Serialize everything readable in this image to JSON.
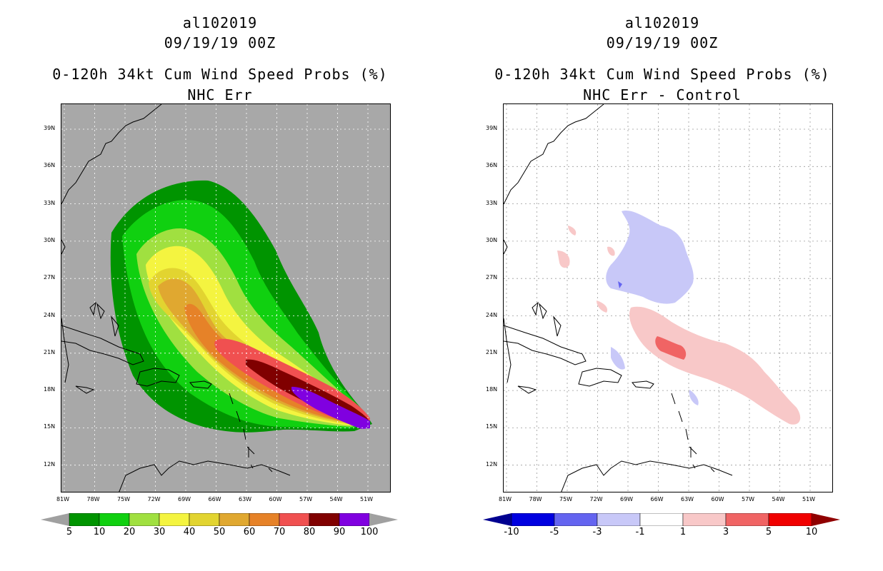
{
  "left": {
    "storm_id": "al102019",
    "datetime": "09/19/19 00Z",
    "product": "0-120h 34kt Cum Wind Speed Probs (%)",
    "subtitle": "NHC Err",
    "background": "#a8a8a8",
    "colorbar": {
      "colors": [
        "#009400",
        "#10d010",
        "#a0e040",
        "#f4f440",
        "#e2d430",
        "#e0a830",
        "#e68228",
        "#f05050",
        "#800000",
        "#8000e0"
      ],
      "labels": [
        "5",
        "10",
        "20",
        "30",
        "40",
        "50",
        "60",
        "70",
        "80",
        "90",
        "100"
      ],
      "end_color": "#a0a0a0"
    }
  },
  "right": {
    "storm_id": "al102019",
    "datetime": "09/19/19 00Z",
    "product": "0-120h 34kt Cum Wind Speed Probs (%)",
    "subtitle": "NHC Err - Control",
    "background": "#ffffff",
    "colorbar": {
      "colors": [
        "#0000e0",
        "#6464f0",
        "#c8c8f8",
        "#ffffff",
        "#f8c8c8",
        "#f06464",
        "#f00000"
      ],
      "labels": [
        "-10",
        "-5",
        "-3",
        "-1",
        "1",
        "3",
        "5",
        "10"
      ],
      "start_color": "#000090",
      "end_color": "#900000"
    }
  },
  "axes": {
    "lon_labels": [
      "81W",
      "78W",
      "75W",
      "72W",
      "69W",
      "66W",
      "63W",
      "60W",
      "57W",
      "54W",
      "51W"
    ],
    "lat_labels": [
      "39N",
      "36N",
      "33N",
      "30N",
      "27N",
      "24N",
      "21N",
      "18N",
      "15N",
      "12N"
    ]
  }
}
